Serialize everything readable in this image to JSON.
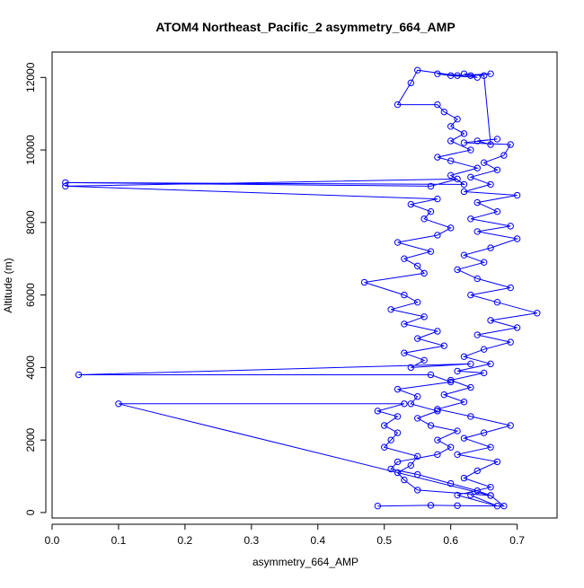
{
  "chart_data": {
    "type": "line",
    "title": "ATOM4 Northeast_Pacific_2 asymmetry_664_AMP",
    "xlabel": "asymmetry_664_AMP",
    "ylabel": "Altitude (m)",
    "xlim": [
      0,
      0.76
    ],
    "ylim": [
      -150,
      12700
    ],
    "xticks": [
      0.0,
      0.1,
      0.2,
      0.3,
      0.4,
      0.5,
      0.6,
      0.7
    ],
    "xtick_labels": [
      "0.0",
      "0.1",
      "0.2",
      "0.3",
      "0.4",
      "0.5",
      "0.6",
      "0.7"
    ],
    "yticks": [
      0,
      2000,
      4000,
      6000,
      8000,
      10000,
      12000
    ],
    "ytick_labels": [
      "0",
      "2000",
      "4000",
      "6000",
      "8000",
      "10000",
      "12000"
    ],
    "grid": false,
    "color": "#0000ff",
    "series": [
      {
        "points": [
          [
            0.49,
            180
          ],
          [
            0.57,
            200
          ],
          [
            0.61,
            190
          ],
          [
            0.68,
            180
          ],
          [
            0.66,
            470
          ],
          [
            0.55,
            620
          ],
          [
            0.53,
            900
          ],
          [
            0.52,
            1100
          ],
          [
            0.54,
            1300
          ],
          [
            0.55,
            1550
          ],
          [
            0.5,
            1800
          ],
          [
            0.51,
            2000
          ],
          [
            0.52,
            2200
          ],
          [
            0.5,
            2400
          ],
          [
            0.52,
            2650
          ],
          [
            0.49,
            2800
          ],
          [
            0.53,
            3000
          ],
          [
            0.1,
            3000
          ],
          [
            0.66,
            470
          ],
          [
            0.64,
            600
          ],
          [
            0.6,
            800
          ],
          [
            0.55,
            1050
          ],
          [
            0.51,
            1200
          ],
          [
            0.52,
            1400
          ],
          [
            0.58,
            1600
          ],
          [
            0.6,
            1800
          ],
          [
            0.58,
            2000
          ],
          [
            0.61,
            2250
          ],
          [
            0.57,
            2400
          ],
          [
            0.55,
            2600
          ],
          [
            0.58,
            2800
          ],
          [
            0.54,
            3000
          ],
          [
            0.55,
            3200
          ],
          [
            0.52,
            3400
          ],
          [
            0.6,
            3600
          ],
          [
            0.57,
            3800
          ],
          [
            0.04,
            3800
          ],
          [
            0.63,
            4100
          ],
          [
            0.54,
            4000
          ],
          [
            0.56,
            4200
          ],
          [
            0.53,
            4400
          ],
          [
            0.59,
            4600
          ],
          [
            0.55,
            4800
          ],
          [
            0.58,
            5000
          ],
          [
            0.53,
            5200
          ],
          [
            0.56,
            5400
          ],
          [
            0.51,
            5600
          ],
          [
            0.55,
            5800
          ],
          [
            0.53,
            6000
          ],
          [
            0.47,
            6350
          ],
          [
            0.56,
            6600
          ],
          [
            0.55,
            6800
          ],
          [
            0.53,
            7000
          ],
          [
            0.57,
            7200
          ],
          [
            0.52,
            7450
          ],
          [
            0.58,
            7650
          ],
          [
            0.6,
            7850
          ],
          [
            0.56,
            8100
          ],
          [
            0.57,
            8300
          ],
          [
            0.54,
            8500
          ],
          [
            0.58,
            8650
          ],
          [
            0.02,
            9000
          ],
          [
            0.61,
            9200
          ],
          [
            0.57,
            9000
          ],
          [
            0.02,
            9100
          ],
          [
            0.62,
            9050
          ],
          [
            0.6,
            9300
          ],
          [
            0.64,
            9500
          ],
          [
            0.6,
            9700
          ],
          [
            0.58,
            9800
          ],
          [
            0.63,
            10000
          ],
          [
            0.6,
            10250
          ],
          [
            0.62,
            10450
          ],
          [
            0.6,
            10650
          ],
          [
            0.61,
            10850
          ],
          [
            0.59,
            11050
          ],
          [
            0.58,
            11250
          ],
          [
            0.52,
            11250
          ],
          [
            0.54,
            11850
          ],
          [
            0.55,
            12200
          ],
          [
            0.61,
            12050
          ],
          [
            0.66,
            12100
          ],
          [
            0.63,
            12050
          ],
          [
            0.58,
            12100
          ],
          [
            0.6,
            12050
          ],
          [
            0.64,
            12000
          ],
          [
            0.62,
            12100
          ],
          [
            0.65,
            12050
          ],
          [
            0.66,
            10150
          ],
          [
            0.64,
            10250
          ],
          [
            0.67,
            10300
          ],
          [
            0.62,
            10200
          ],
          [
            0.69,
            10150
          ],
          [
            0.68,
            9850
          ],
          [
            0.65,
            9650
          ],
          [
            0.67,
            9450
          ],
          [
            0.63,
            9250
          ],
          [
            0.66,
            9050
          ],
          [
            0.62,
            8850
          ],
          [
            0.7,
            8750
          ],
          [
            0.64,
            8550
          ],
          [
            0.67,
            8300
          ],
          [
            0.63,
            8100
          ],
          [
            0.69,
            7900
          ],
          [
            0.64,
            7750
          ],
          [
            0.7,
            7550
          ],
          [
            0.66,
            7300
          ],
          [
            0.62,
            7100
          ],
          [
            0.65,
            6900
          ],
          [
            0.61,
            6700
          ],
          [
            0.64,
            6450
          ],
          [
            0.69,
            6200
          ],
          [
            0.63,
            6000
          ],
          [
            0.67,
            5800
          ],
          [
            0.73,
            5500
          ],
          [
            0.66,
            5300
          ],
          [
            0.7,
            5100
          ],
          [
            0.64,
            4900
          ],
          [
            0.69,
            4700
          ],
          [
            0.65,
            4500
          ],
          [
            0.62,
            4300
          ],
          [
            0.66,
            4100
          ],
          [
            0.61,
            3900
          ],
          [
            0.65,
            3850
          ],
          [
            0.6,
            3650
          ],
          [
            0.63,
            3450
          ],
          [
            0.59,
            3250
          ],
          [
            0.62,
            3050
          ],
          [
            0.58,
            2850
          ],
          [
            0.63,
            2650
          ],
          [
            0.69,
            2400
          ],
          [
            0.65,
            2200
          ],
          [
            0.62,
            2050
          ],
          [
            0.66,
            1800
          ],
          [
            0.61,
            1600
          ],
          [
            0.67,
            1400
          ],
          [
            0.64,
            1150
          ],
          [
            0.62,
            950
          ],
          [
            0.66,
            700
          ],
          [
            0.61,
            480
          ],
          [
            0.67,
            180
          ],
          [
            0.63,
            480
          ]
        ]
      }
    ]
  }
}
